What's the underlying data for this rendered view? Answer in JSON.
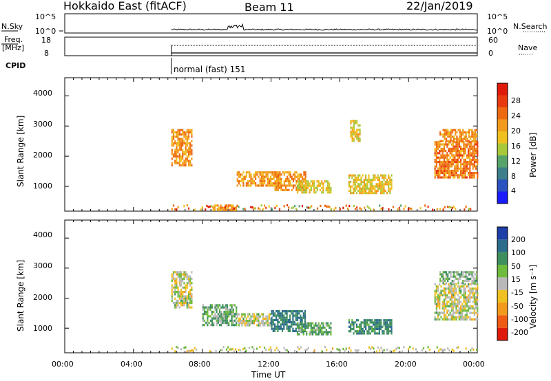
{
  "header": {
    "station": "Hokkaido East (fitACF)",
    "beam": "Beam 11",
    "date": "22/Jan/2019"
  },
  "noise_panel": {
    "left_label": "N.Sky",
    "right_label": "N.Search",
    "left_ticks": [
      "10^5",
      "10^0"
    ],
    "right_ticks": [
      "10^5",
      "10^0"
    ]
  },
  "freq_panel": {
    "left_label_line1": "Freq.",
    "left_label_line2": "[MHz]",
    "right_label": "Nave",
    "left_ticks": [
      "18",
      "8"
    ],
    "right_ticks": [
      "60",
      "0"
    ]
  },
  "cpid": {
    "label": "CPID",
    "program": "normal (fast) 151"
  },
  "power_colorbar": {
    "label": "Power [dB]",
    "ticks": [
      "28",
      "24",
      "20",
      "16",
      "12",
      "8",
      "4"
    ],
    "colors": [
      "#1a1aff",
      "#2a52c0",
      "#3c7f8a",
      "#57a36a",
      "#a8c83a",
      "#f0c020",
      "#f29a1c",
      "#ee6a12",
      "#e83a0e",
      "#e01a0a"
    ]
  },
  "velocity_colorbar": {
    "label": "Velocity [m s⁻¹]",
    "ticks": [
      "200",
      "100",
      "50",
      "15",
      "-15",
      "-50",
      "-100",
      "-200"
    ],
    "colors": [
      "#1e3fa8",
      "#2a6c8a",
      "#3f8f5e",
      "#6fbb3c",
      "#b8b8b8",
      "#f0c020",
      "#f29a1c",
      "#ef5a14",
      "#e01a0a"
    ]
  },
  "chart_data": [
    {
      "type": "heatmap",
      "name": "power",
      "xlabel": "Time UT",
      "ylabel": "Slant Range [km]",
      "x_ticks": [
        "00:00",
        "04:00",
        "08:00",
        "12:00",
        "16:00",
        "20:00",
        "00:00"
      ],
      "xlim_hours": [
        0,
        24
      ],
      "y_ticks": [
        1000,
        2000,
        3000,
        4000
      ],
      "ylim_km": [
        180,
        4600
      ],
      "data_start_hour": 6.2,
      "echo_regions": [
        {
          "t0": 6.2,
          "t1": 7.4,
          "r0": 1700,
          "r1": 2900,
          "power_db": 26
        },
        {
          "t0": 10.0,
          "t1": 12.5,
          "r0": 1000,
          "r1": 1500,
          "power_db": 25
        },
        {
          "t0": 12.2,
          "t1": 14.0,
          "r0": 900,
          "r1": 1500,
          "power_db": 26
        },
        {
          "t0": 13.5,
          "t1": 15.5,
          "r0": 800,
          "r1": 1200,
          "power_db": 22
        },
        {
          "t0": 16.5,
          "t1": 19.0,
          "r0": 800,
          "r1": 1400,
          "power_db": 22
        },
        {
          "t0": 16.6,
          "t1": 17.2,
          "r0": 2500,
          "r1": 3200,
          "power_db": 22
        },
        {
          "t0": 21.5,
          "t1": 24.0,
          "r0": 1300,
          "r1": 2500,
          "power_db": 27
        },
        {
          "t0": 21.8,
          "t1": 24.0,
          "r0": 2500,
          "r1": 2900,
          "power_db": 26
        },
        {
          "t0": 8.6,
          "t1": 10.0,
          "r0": 250,
          "r1": 400,
          "power_db": 25
        }
      ]
    },
    {
      "type": "heatmap",
      "name": "velocity",
      "xlabel": "Time UT",
      "ylabel": "Slant Range [km]",
      "x_ticks": [
        "00:00",
        "04:00",
        "08:00",
        "12:00",
        "16:00",
        "20:00",
        "00:00"
      ],
      "xlim_hours": [
        0,
        24
      ],
      "y_ticks": [
        1000,
        2000,
        3000,
        4000
      ],
      "ylim_km": [
        180,
        4600
      ],
      "data_start_hour": 6.2,
      "echo_regions": [
        {
          "t0": 6.2,
          "t1": 7.4,
          "r0": 1700,
          "r1": 2900,
          "velocity_ms": 0
        },
        {
          "t0": 8.0,
          "t1": 10.0,
          "r0": 1100,
          "r1": 1800,
          "velocity_ms": 30
        },
        {
          "t0": 10.0,
          "t1": 12.0,
          "r0": 1100,
          "r1": 1500,
          "velocity_ms": 0
        },
        {
          "t0": 12.0,
          "t1": 14.0,
          "r0": 900,
          "r1": 1600,
          "velocity_ms": 80
        },
        {
          "t0": 13.5,
          "t1": 15.5,
          "r0": 800,
          "r1": 1200,
          "velocity_ms": 40
        },
        {
          "t0": 16.5,
          "t1": 19.0,
          "r0": 800,
          "r1": 1300,
          "velocity_ms": 60
        },
        {
          "t0": 21.5,
          "t1": 24.0,
          "r0": 1300,
          "r1": 2500,
          "velocity_ms": 0
        },
        {
          "t0": 21.8,
          "t1": 24.0,
          "r0": 2500,
          "r1": 2900,
          "velocity_ms": 20
        }
      ]
    }
  ]
}
